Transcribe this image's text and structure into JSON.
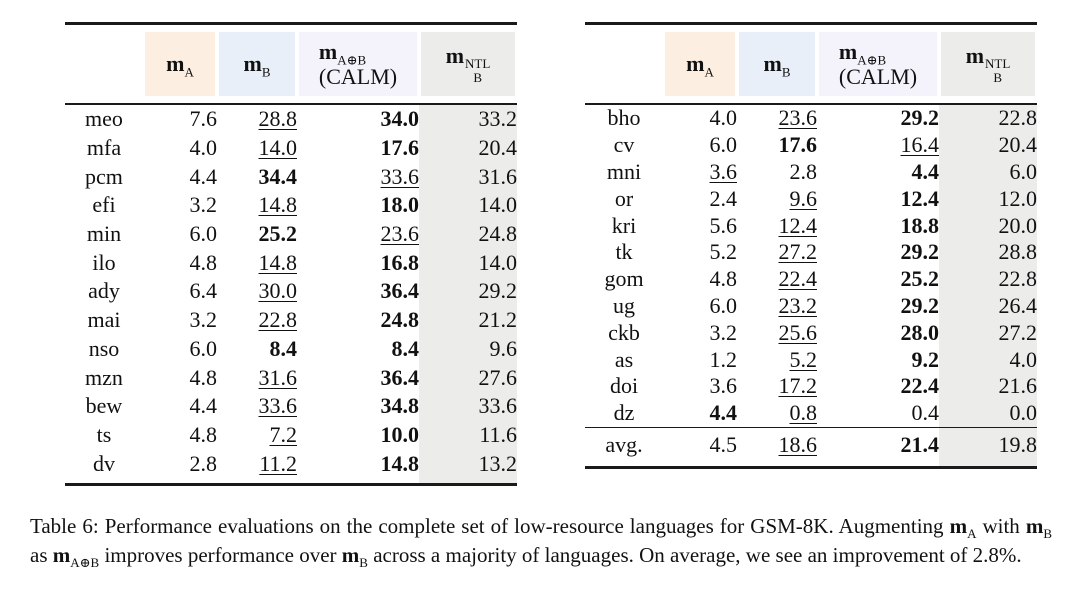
{
  "colors": {
    "page_bg": "#ffffff",
    "text": "#111111",
    "rule": "#1a1a1a",
    "peach": "#fcefe1",
    "blue": "#e9eff8",
    "lavender": "#f4f3fb",
    "gray": "#ececea"
  },
  "columns": [
    {
      "base": "m",
      "sub": "A"
    },
    {
      "base": "m",
      "sub": "B"
    },
    {
      "base": "m",
      "sub": "A⊕B",
      "line2": "(CALM)"
    },
    {
      "base": "m",
      "sub": "B",
      "sup": "NTL"
    }
  ],
  "left_table": {
    "rows": [
      {
        "lang": "meo",
        "cells": [
          [
            "7.6",
            "p"
          ],
          [
            "28.8",
            "u"
          ],
          [
            "34.0",
            "b"
          ],
          [
            "33.2",
            "p"
          ]
        ]
      },
      {
        "lang": "mfa",
        "cells": [
          [
            "4.0",
            "p"
          ],
          [
            "14.0",
            "u"
          ],
          [
            "17.6",
            "b"
          ],
          [
            "20.4",
            "p"
          ]
        ]
      },
      {
        "lang": "pcm",
        "cells": [
          [
            "4.4",
            "p"
          ],
          [
            "34.4",
            "b"
          ],
          [
            "33.6",
            "u"
          ],
          [
            "31.6",
            "p"
          ]
        ]
      },
      {
        "lang": "efi",
        "cells": [
          [
            "3.2",
            "p"
          ],
          [
            "14.8",
            "u"
          ],
          [
            "18.0",
            "b"
          ],
          [
            "14.0",
            "p"
          ]
        ]
      },
      {
        "lang": "min",
        "cells": [
          [
            "6.0",
            "p"
          ],
          [
            "25.2",
            "b"
          ],
          [
            "23.6",
            "u"
          ],
          [
            "24.8",
            "p"
          ]
        ]
      },
      {
        "lang": "ilo",
        "cells": [
          [
            "4.8",
            "p"
          ],
          [
            "14.8",
            "u"
          ],
          [
            "16.8",
            "b"
          ],
          [
            "14.0",
            "p"
          ]
        ]
      },
      {
        "lang": "ady",
        "cells": [
          [
            "6.4",
            "p"
          ],
          [
            "30.0",
            "u"
          ],
          [
            "36.4",
            "b"
          ],
          [
            "29.2",
            "p"
          ]
        ]
      },
      {
        "lang": "mai",
        "cells": [
          [
            "3.2",
            "p"
          ],
          [
            "22.8",
            "u"
          ],
          [
            "24.8",
            "b"
          ],
          [
            "21.2",
            "p"
          ]
        ]
      },
      {
        "lang": "nso",
        "cells": [
          [
            "6.0",
            "p"
          ],
          [
            "8.4",
            "b"
          ],
          [
            "8.4",
            "b"
          ],
          [
            "9.6",
            "p"
          ]
        ]
      },
      {
        "lang": "mzn",
        "cells": [
          [
            "4.8",
            "p"
          ],
          [
            "31.6",
            "u"
          ],
          [
            "36.4",
            "b"
          ],
          [
            "27.6",
            "p"
          ]
        ]
      },
      {
        "lang": "bew",
        "cells": [
          [
            "4.4",
            "p"
          ],
          [
            "33.6",
            "u"
          ],
          [
            "34.8",
            "b"
          ],
          [
            "33.6",
            "p"
          ]
        ]
      },
      {
        "lang": "ts",
        "cells": [
          [
            "4.8",
            "p"
          ],
          [
            "7.2",
            "u"
          ],
          [
            "10.0",
            "b"
          ],
          [
            "11.6",
            "p"
          ]
        ]
      },
      {
        "lang": "dv",
        "cells": [
          [
            "2.8",
            "p"
          ],
          [
            "11.2",
            "u"
          ],
          [
            "14.8",
            "b"
          ],
          [
            "13.2",
            "p"
          ]
        ]
      }
    ]
  },
  "right_table": {
    "rows": [
      {
        "lang": "bho",
        "cells": [
          [
            "4.0",
            "p"
          ],
          [
            "23.6",
            "u"
          ],
          [
            "29.2",
            "b"
          ],
          [
            "22.8",
            "p"
          ]
        ]
      },
      {
        "lang": "cv",
        "cells": [
          [
            "6.0",
            "p"
          ],
          [
            "17.6",
            "b"
          ],
          [
            "16.4",
            "u"
          ],
          [
            "20.4",
            "p"
          ]
        ]
      },
      {
        "lang": "mni",
        "cells": [
          [
            "3.6",
            "u"
          ],
          [
            "2.8",
            "p"
          ],
          [
            "4.4",
            "b"
          ],
          [
            "6.0",
            "p"
          ]
        ]
      },
      {
        "lang": "or",
        "cells": [
          [
            "2.4",
            "p"
          ],
          [
            "9.6",
            "u"
          ],
          [
            "12.4",
            "b"
          ],
          [
            "12.0",
            "p"
          ]
        ]
      },
      {
        "lang": "kri",
        "cells": [
          [
            "5.6",
            "p"
          ],
          [
            "12.4",
            "u"
          ],
          [
            "18.8",
            "b"
          ],
          [
            "20.0",
            "p"
          ]
        ]
      },
      {
        "lang": "tk",
        "cells": [
          [
            "5.2",
            "p"
          ],
          [
            "27.2",
            "u"
          ],
          [
            "29.2",
            "b"
          ],
          [
            "28.8",
            "p"
          ]
        ]
      },
      {
        "lang": "gom",
        "cells": [
          [
            "4.8",
            "p"
          ],
          [
            "22.4",
            "u"
          ],
          [
            "25.2",
            "b"
          ],
          [
            "22.8",
            "p"
          ]
        ]
      },
      {
        "lang": "ug",
        "cells": [
          [
            "6.0",
            "p"
          ],
          [
            "23.2",
            "u"
          ],
          [
            "29.2",
            "b"
          ],
          [
            "26.4",
            "p"
          ]
        ]
      },
      {
        "lang": "ckb",
        "cells": [
          [
            "3.2",
            "p"
          ],
          [
            "25.6",
            "u"
          ],
          [
            "28.0",
            "b"
          ],
          [
            "27.2",
            "p"
          ]
        ]
      },
      {
        "lang": "as",
        "cells": [
          [
            "1.2",
            "p"
          ],
          [
            "5.2",
            "u"
          ],
          [
            "9.2",
            "b"
          ],
          [
            "4.0",
            "p"
          ]
        ]
      },
      {
        "lang": "doi",
        "cells": [
          [
            "3.6",
            "p"
          ],
          [
            "17.2",
            "u"
          ],
          [
            "22.4",
            "b"
          ],
          [
            "21.6",
            "p"
          ]
        ]
      },
      {
        "lang": "dz",
        "cells": [
          [
            "4.4",
            "b"
          ],
          [
            "0.8",
            "u"
          ],
          [
            "0.4",
            "p"
          ],
          [
            "0.0",
            "p"
          ]
        ]
      },
      {
        "lang": "avg.",
        "rule_above": true,
        "cells": [
          [
            "4.5",
            "p"
          ],
          [
            "18.6",
            "u"
          ],
          [
            "21.4",
            "b"
          ],
          [
            "19.8",
            "p"
          ]
        ]
      }
    ]
  },
  "caption": {
    "segments": [
      {
        "t": "Table 6: Performance evaluations on the complete set of low-resource languages for GSM-8K. Augmenting "
      },
      {
        "m": "m",
        "sub": "A"
      },
      {
        "t": " with "
      },
      {
        "m": "m",
        "sub": "B"
      },
      {
        "t": " as "
      },
      {
        "m": "m",
        "sub": "A⊕B"
      },
      {
        "t": " improves performance over "
      },
      {
        "m": "m",
        "sub": "B"
      },
      {
        "t": " across a majority of languages. On average, we see an improvement of 2.8%."
      }
    ]
  }
}
